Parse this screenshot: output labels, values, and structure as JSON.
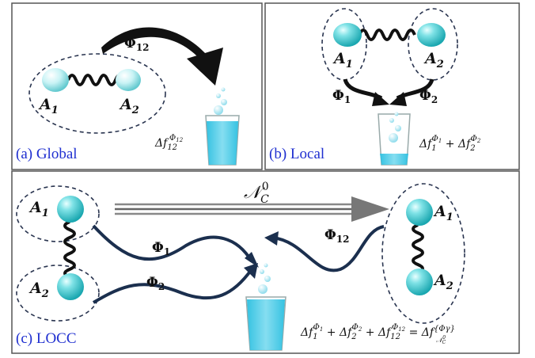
{
  "panels": {
    "a": {
      "label": "(a) Global",
      "atom1": "A1",
      "atom2": "A2",
      "channel": "Φ12",
      "equation": "Δf12^Φ12"
    },
    "b": {
      "label": "(b) Local",
      "atom1": "A1",
      "atom2": "A2",
      "channel1": "Φ1",
      "channel2": "Φ2",
      "equation": "Δf1^Φ1 + Δf2^Φ2"
    },
    "c": {
      "label": "(c) LOCC",
      "atom1": "A1",
      "atom2": "A2",
      "channel1": "Φ1",
      "channel2": "Φ2",
      "channel12": "Φ12",
      "operation": "N_C^0",
      "equation": "Δf1^Φ1 + Δf2^Φ2 + Δf12^Φ12 = Δf^{Φγ}_{N_C^0}"
    }
  },
  "colors": {
    "atom": "#34c6cc",
    "panel_label": "#1f2fd0",
    "arrow": "#1b2f4e",
    "water": "#3fc8e6"
  }
}
